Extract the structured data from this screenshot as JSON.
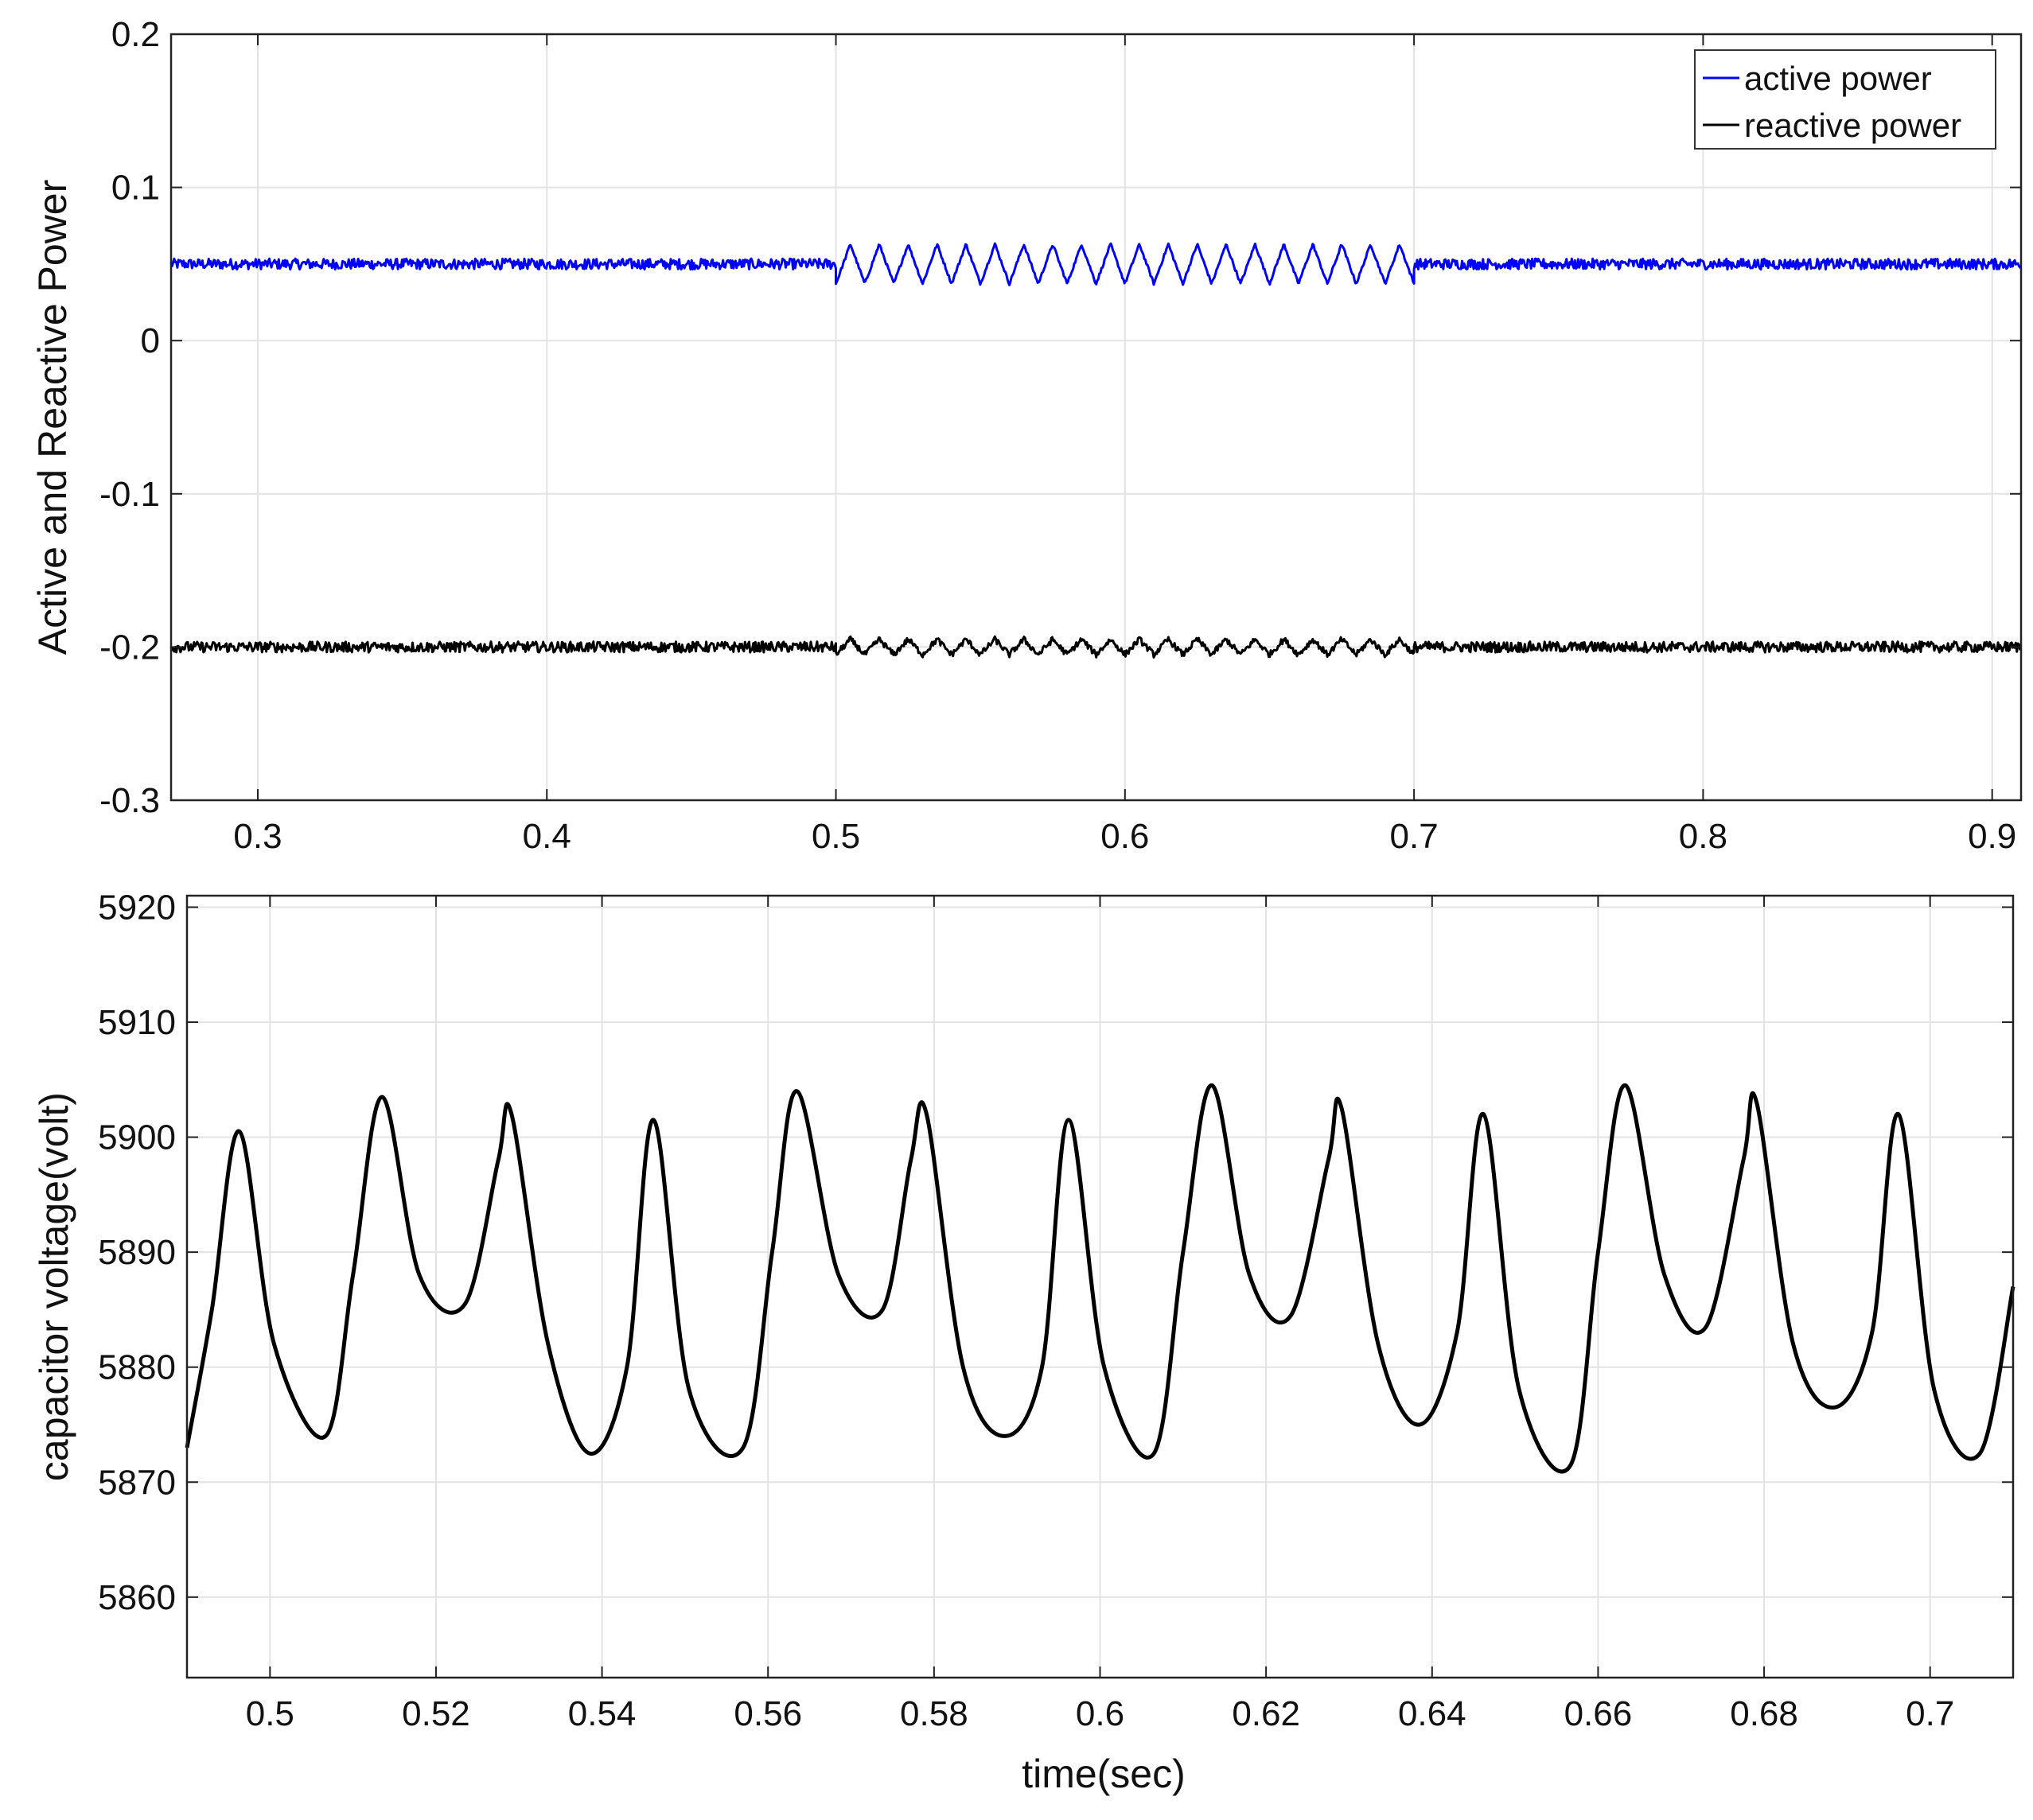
{
  "chart_data": [
    {
      "type": "line",
      "title": "",
      "xlabel": "",
      "ylabel": "Active and Reactive Power",
      "xlim": [
        0.27,
        0.91
      ],
      "ylim": [
        -0.3,
        0.2
      ],
      "x_ticks": [
        0.3,
        0.4,
        0.5,
        0.6,
        0.7,
        0.8,
        0.9
      ],
      "x_tick_labels": [
        "0.3",
        "0.4",
        "0.5",
        "0.6",
        "0.7",
        "0.8",
        "0.9"
      ],
      "y_ticks": [
        0.2,
        0.1,
        0,
        -0.1,
        -0.2,
        -0.3
      ],
      "y_tick_labels": [
        "0.2",
        "0.1",
        "0",
        "-0.1",
        "-0.2",
        "-0.3"
      ],
      "grid": true,
      "legend": "top-right",
      "series": [
        {
          "name": "active power",
          "color": "#0000ff",
          "segments": [
            {
              "x_range": [
                0.27,
                0.5
              ],
              "mean": 0.05,
              "noise": 0.0035,
              "oscillation_amplitude": 0
            },
            {
              "x_range": [
                0.5,
                0.7
              ],
              "mean": 0.05,
              "noise": 0.001,
              "oscillation_amplitude": 0.013,
              "oscillation_cycles": 20
            },
            {
              "x_range": [
                0.7,
                0.91
              ],
              "mean": 0.05,
              "noise": 0.0035,
              "oscillation_amplitude": 0
            }
          ]
        },
        {
          "name": "reactive power",
          "color": "#000000",
          "segments": [
            {
              "x_range": [
                0.27,
                0.5
              ],
              "mean": -0.2,
              "noise": 0.0035,
              "oscillation_amplitude": 0
            },
            {
              "x_range": [
                0.5,
                0.7
              ],
              "mean": -0.2,
              "noise": 0.002,
              "oscillation_amplitude": 0.005,
              "oscillation_cycles": 20
            },
            {
              "x_range": [
                0.7,
                0.91
              ],
              "mean": -0.2,
              "noise": 0.0035,
              "oscillation_amplitude": 0
            }
          ]
        }
      ]
    },
    {
      "type": "line",
      "title": "",
      "xlabel": "time(sec)",
      "ylabel": "capacitor voltage(volt)",
      "xlim": [
        0.49,
        0.71
      ],
      "ylim": [
        5853,
        5921
      ],
      "x_ticks": [
        0.5,
        0.52,
        0.54,
        0.56,
        0.58,
        0.6,
        0.62,
        0.64,
        0.66,
        0.68,
        0.7
      ],
      "x_tick_labels": [
        "0.5",
        "0.52",
        "0.54",
        "0.56",
        "0.58",
        "0.6",
        "0.62",
        "0.64",
        "0.66",
        "0.68",
        "0.7"
      ],
      "y_ticks": [
        5920,
        5910,
        5900,
        5890,
        5880,
        5870,
        5860
      ],
      "y_tick_labels": [
        "5920",
        "5910",
        "5900",
        "5890",
        "5880",
        "5870",
        "5860"
      ],
      "grid": true,
      "series": [
        {
          "color": "#000000",
          "x": [
            0.49,
            0.493,
            0.4963,
            0.5005,
            0.5067,
            0.51,
            0.5135,
            0.518,
            0.5235,
            0.5275,
            0.5291,
            0.5335,
            0.5385,
            0.543,
            0.5462,
            0.5505,
            0.557,
            0.5605,
            0.5635,
            0.5685,
            0.5738,
            0.5772,
            0.5791,
            0.5835,
            0.5885,
            0.593,
            0.5962,
            0.6005,
            0.6065,
            0.61,
            0.6135,
            0.618,
            0.623,
            0.6275,
            0.6291,
            0.6335,
            0.6385,
            0.643,
            0.6462,
            0.6505,
            0.6567,
            0.66,
            0.6633,
            0.668,
            0.673,
            0.6775,
            0.6791,
            0.6835,
            0.6885,
            0.693,
            0.6962,
            0.7005,
            0.706,
            0.71
          ],
          "y": [
            5873,
            5885,
            5900.5,
            5882,
            5874,
            5888,
            5903.5,
            5888,
            5885.5,
            5898,
            5902,
            5882,
            5872.5,
            5880,
            5901.5,
            5878,
            5873,
            5890,
            5904,
            5888,
            5885,
            5898,
            5902,
            5880,
            5874,
            5880,
            5901.5,
            5880,
            5872.5,
            5890,
            5904.5,
            5888,
            5884.5,
            5898,
            5902.5,
            5882,
            5875,
            5883,
            5902,
            5878,
            5871.5,
            5890,
            5904.5,
            5888,
            5883.5,
            5898,
            5903,
            5882,
            5876.5,
            5883,
            5902,
            5878,
            5872.5,
            5887
          ]
        }
      ]
    }
  ]
}
